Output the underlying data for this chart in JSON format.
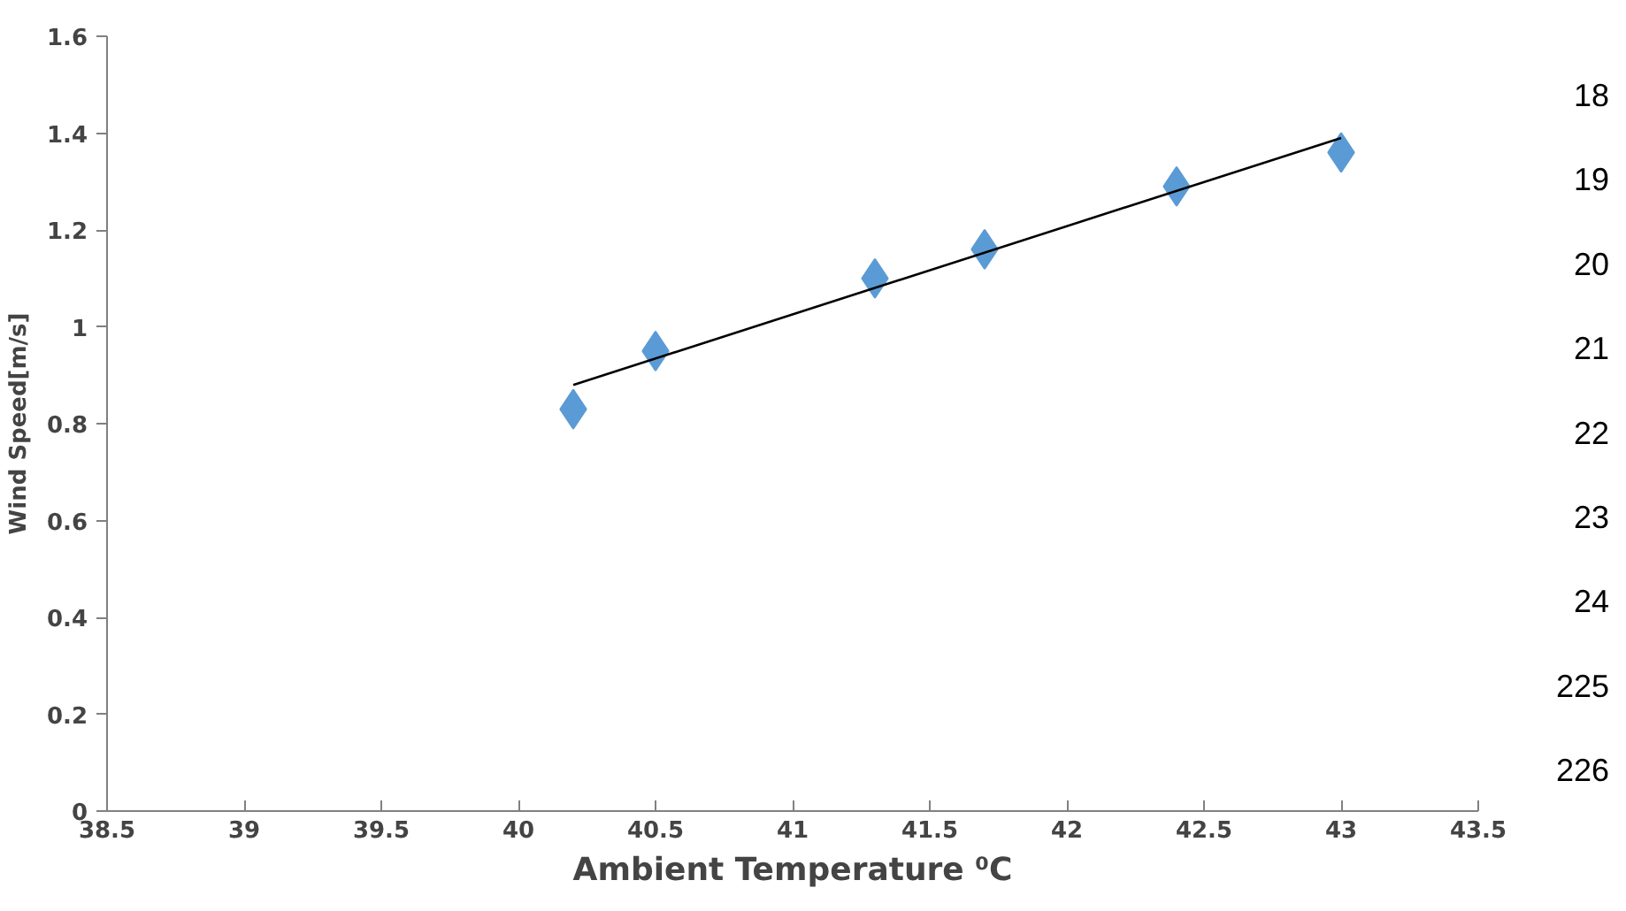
{
  "chart_data": {
    "type": "scatter",
    "xlabel": "Ambient Temperature ⁰C",
    "ylabel": "Wind Speed[m/s]",
    "xlim": [
      38.5,
      43.5
    ],
    "xticks": [
      38.5,
      39,
      39.5,
      40,
      40.5,
      41,
      41.5,
      42,
      42.5,
      43,
      43.5
    ],
    "ylim": [
      0,
      1.6
    ],
    "yticks": [
      0,
      0.2,
      0.4,
      0.6,
      0.8,
      1,
      1.2,
      1.4,
      1.6
    ],
    "grid": false,
    "marker": "diamond",
    "series": [
      {
        "color": "#5b9bd5",
        "x": [
          40.2,
          40.5,
          41.3,
          41.7,
          42.4,
          43
        ],
        "values": [
          0.83,
          0.95,
          1.1,
          1.16,
          1.29,
          1.36
        ]
      },
      {
        "type": "line",
        "marker": "none",
        "color": "#000000",
        "line_style": "solid",
        "x": [
          40.2,
          43
        ],
        "values": [
          0.88,
          1.39
        ]
      }
    ],
    "annotations": [
      "18",
      "19",
      "20",
      "21",
      "22",
      "23",
      "24",
      "225",
      "226"
    ]
  }
}
